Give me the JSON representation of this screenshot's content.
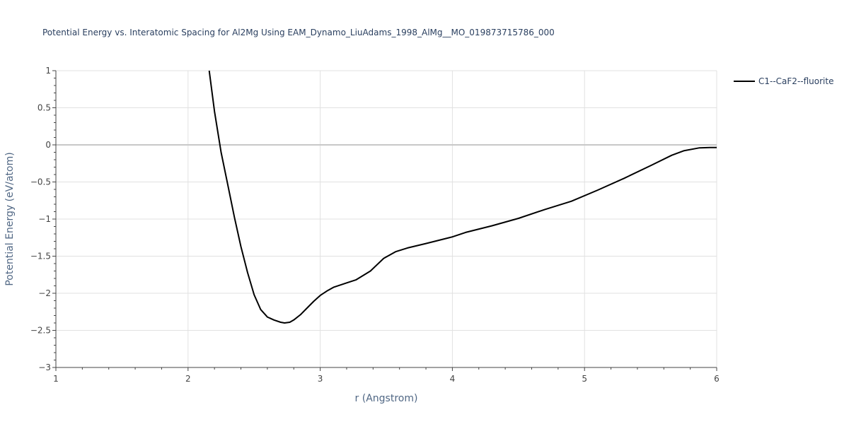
{
  "chart_data": {
    "type": "line",
    "title": "Potential Energy vs. Interatomic Spacing for Al2Mg Using EAM_Dynamo_LiuAdams_1998_AlMg__MO_019873715786_000",
    "xlabel": "r (Angstrom)",
    "ylabel": "Potential Energy (eV/atom)",
    "xlim": [
      1,
      6
    ],
    "ylim": [
      -3,
      1
    ],
    "x_ticks": [
      1,
      2,
      3,
      4,
      5,
      6
    ],
    "y_ticks": [
      1,
      0.5,
      0,
      -0.5,
      -1,
      -1.5,
      -2,
      -2.5,
      -3
    ],
    "grid": true,
    "legend_position": "top-right",
    "series": [
      {
        "name": "C1--CaF2--fluorite",
        "color": "#000000",
        "x": [
          2.16,
          2.2,
          2.25,
          2.3,
          2.35,
          2.4,
          2.45,
          2.5,
          2.55,
          2.6,
          2.65,
          2.7,
          2.73,
          2.77,
          2.8,
          2.85,
          2.9,
          2.95,
          3.0,
          3.05,
          3.1,
          3.2,
          3.27,
          3.38,
          3.48,
          3.57,
          3.66,
          3.8,
          4.0,
          4.1,
          4.3,
          4.5,
          4.7,
          4.9,
          5.1,
          5.3,
          5.5,
          5.66,
          5.75,
          5.87,
          5.95,
          6.0
        ],
        "y": [
          1.0,
          0.45,
          -0.1,
          -0.53,
          -0.97,
          -1.37,
          -1.72,
          -2.02,
          -2.22,
          -2.32,
          -2.36,
          -2.39,
          -2.4,
          -2.39,
          -2.36,
          -2.29,
          -2.2,
          -2.11,
          -2.03,
          -1.97,
          -1.92,
          -1.86,
          -1.82,
          -1.7,
          -1.53,
          -1.44,
          -1.39,
          -1.33,
          -1.24,
          -1.18,
          -1.09,
          -0.99,
          -0.87,
          -0.76,
          -0.61,
          -0.45,
          -0.28,
          -0.14,
          -0.08,
          -0.04,
          -0.035,
          -0.035
        ]
      }
    ]
  }
}
